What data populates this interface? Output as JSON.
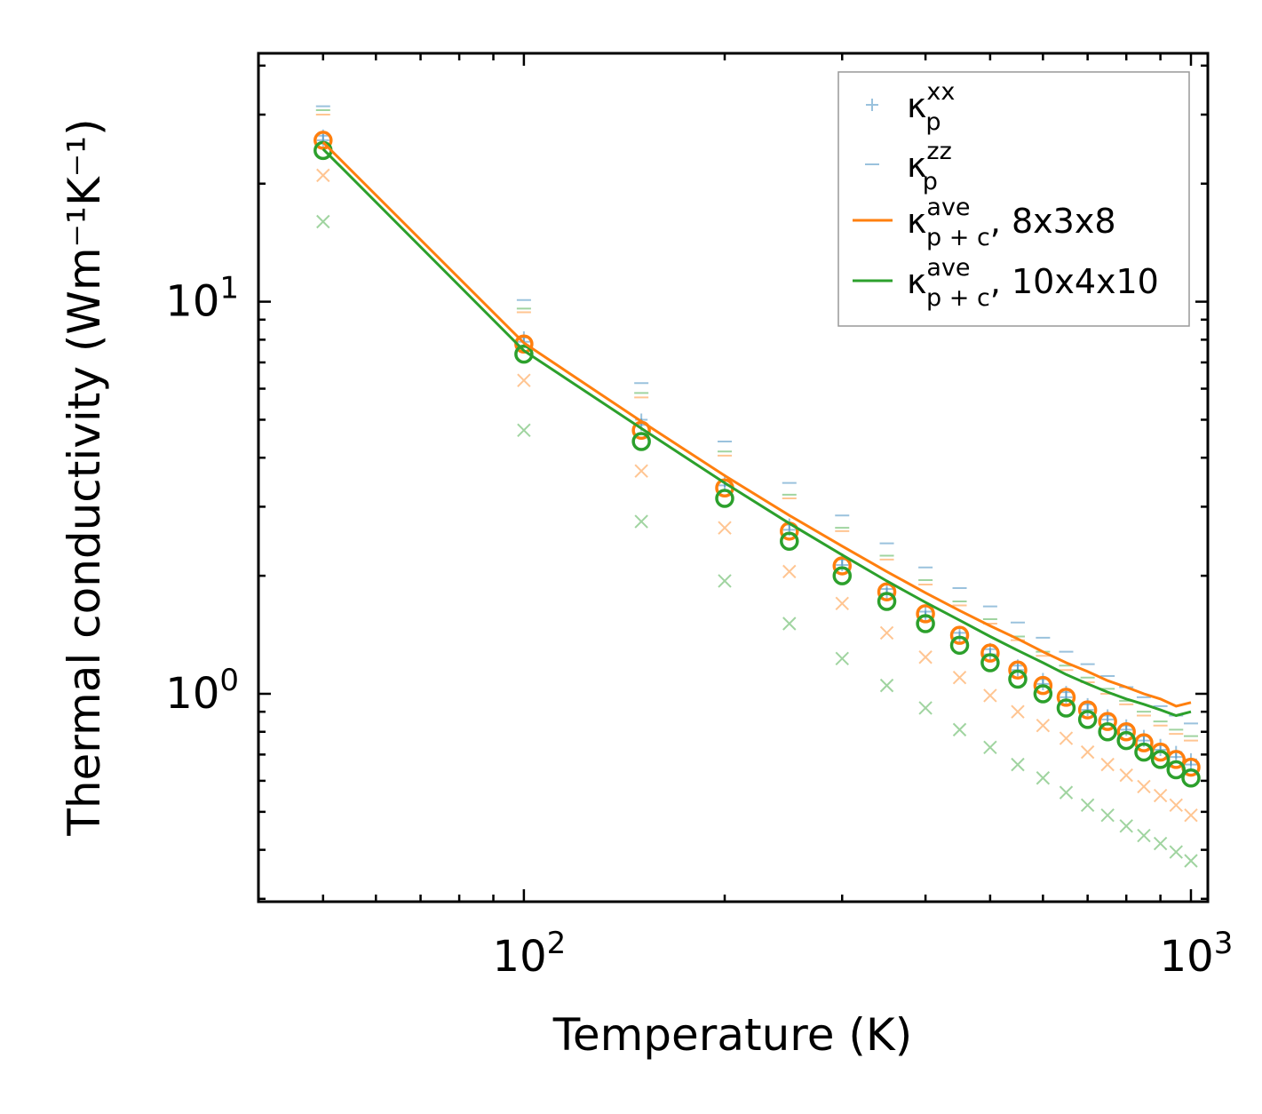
{
  "chart_data": {
    "type": "scatter",
    "xscale": "log",
    "yscale": "log",
    "xlabel": "Temperature (K)",
    "ylabel": "Thermal conductivity (Wm⁻¹K⁻¹)",
    "xlim": [
      40,
      1060
    ],
    "ylim": [
      0.295,
      43
    ],
    "x_ticks": [
      {
        "value": 100,
        "base": "10",
        "exp": "2"
      },
      {
        "value": 1000,
        "base": "10",
        "exp": "3"
      }
    ],
    "y_ticks": [
      {
        "value": 1,
        "base": "10",
        "exp": "0"
      },
      {
        "value": 10,
        "base": "10",
        "exp": "1"
      }
    ],
    "colors": {
      "blue": "#1f77b4",
      "orange": "#ff7f0e",
      "green": "#2ca02c"
    },
    "temperatures": [
      50,
      100,
      150,
      200,
      250,
      300,
      350,
      400,
      450,
      500,
      550,
      600,
      650,
      700,
      750,
      800,
      850,
      900,
      950,
      1000
    ],
    "series": [
      {
        "name": "kxx_8x3x8",
        "marker": "plus",
        "color": "#1f77b4",
        "alpha": 0.45,
        "values": [
          26.5,
          8.1,
          5.0,
          3.5,
          2.7,
          2.2,
          1.85,
          1.62,
          1.43,
          1.3,
          1.18,
          1.09,
          1.01,
          0.94,
          0.88,
          0.83,
          0.78,
          0.74,
          0.71,
          0.68
        ]
      },
      {
        "name": "kzz_8x3x8",
        "marker": "minus",
        "color": "#1f77b4",
        "alpha": 0.45,
        "values": [
          31.5,
          10.1,
          6.2,
          4.4,
          3.45,
          2.85,
          2.42,
          2.1,
          1.86,
          1.67,
          1.52,
          1.39,
          1.28,
          1.19,
          1.11,
          1.04,
          0.98,
          0.93,
          0.88,
          0.84
        ]
      },
      {
        "name": "kxx_10x4x10",
        "marker": "plus",
        "color": "#1f77b4",
        "alpha": 0.45,
        "values": [
          25.8,
          7.9,
          4.85,
          3.4,
          2.62,
          2.13,
          1.8,
          1.57,
          1.39,
          1.26,
          1.15,
          1.06,
          0.98,
          0.91,
          0.86,
          0.81,
          0.76,
          0.72,
          0.69,
          0.66
        ]
      },
      {
        "name": "kzz_8x3x8_orange",
        "marker": "minus",
        "color": "#ff7f0e",
        "alpha": 0.45,
        "values": [
          30.0,
          9.4,
          5.7,
          4.05,
          3.15,
          2.6,
          2.2,
          1.9,
          1.68,
          1.51,
          1.37,
          1.25,
          1.15,
          1.07,
          1.0,
          0.94,
          0.88,
          0.83,
          0.79,
          0.76
        ]
      },
      {
        "name": "kzz_10x4x10_green",
        "marker": "minus",
        "color": "#2ca02c",
        "alpha": 0.45,
        "values": [
          30.8,
          9.6,
          5.85,
          4.15,
          3.22,
          2.65,
          2.25,
          1.95,
          1.72,
          1.55,
          1.4,
          1.28,
          1.18,
          1.1,
          1.03,
          0.96,
          0.9,
          0.85,
          0.81,
          0.78
        ]
      },
      {
        "name": "coherent_8x3x8",
        "marker": "x",
        "color": "#ff7f0e",
        "alpha": 0.45,
        "values": [
          21.0,
          6.3,
          3.7,
          2.65,
          2.05,
          1.7,
          1.43,
          1.24,
          1.1,
          0.99,
          0.9,
          0.83,
          0.77,
          0.71,
          0.66,
          0.62,
          0.58,
          0.55,
          0.52,
          0.49
        ]
      },
      {
        "name": "coherent_10x4x10",
        "marker": "x",
        "color": "#2ca02c",
        "alpha": 0.45,
        "values": [
          16.0,
          4.7,
          2.75,
          1.94,
          1.51,
          1.23,
          1.05,
          0.92,
          0.81,
          0.73,
          0.66,
          0.61,
          0.56,
          0.52,
          0.49,
          0.46,
          0.435,
          0.415,
          0.395,
          0.375
        ]
      },
      {
        "name": "kp_ave_8x3x8",
        "marker": "circle",
        "color": "#ff7f0e",
        "alpha": 1,
        "values": [
          25.8,
          7.8,
          4.7,
          3.35,
          2.6,
          2.12,
          1.82,
          1.6,
          1.41,
          1.27,
          1.15,
          1.05,
          0.98,
          0.91,
          0.85,
          0.8,
          0.75,
          0.71,
          0.68,
          0.65
        ]
      },
      {
        "name": "kp_ave_10x4x10",
        "marker": "circle",
        "color": "#2ca02c",
        "alpha": 1,
        "values": [
          24.3,
          7.35,
          4.4,
          3.15,
          2.45,
          2.0,
          1.72,
          1.51,
          1.33,
          1.2,
          1.09,
          1.0,
          0.92,
          0.86,
          0.8,
          0.76,
          0.71,
          0.68,
          0.64,
          0.61
        ]
      },
      {
        "name": "kpc_ave_8x3x8",
        "marker": "line",
        "color": "#ff7f0e",
        "alpha": 1,
        "values": [
          25.5,
          7.85,
          4.95,
          3.6,
          2.85,
          2.38,
          2.05,
          1.81,
          1.63,
          1.49,
          1.38,
          1.28,
          1.2,
          1.14,
          1.08,
          1.04,
          1.0,
          0.97,
          0.93,
          0.95
        ]
      },
      {
        "name": "kpc_ave_10x4x10",
        "marker": "line",
        "color": "#2ca02c",
        "alpha": 1,
        "values": [
          24.5,
          7.5,
          4.75,
          3.45,
          2.72,
          2.26,
          1.94,
          1.71,
          1.54,
          1.4,
          1.29,
          1.2,
          1.12,
          1.06,
          1.01,
          0.97,
          0.94,
          0.91,
          0.88,
          0.9
        ]
      }
    ],
    "legend": {
      "placement": "top-right",
      "entries": [
        {
          "marker": "plus",
          "color": "#1f77b4",
          "symbol": "κ",
          "sub": "p",
          "sup": "xx",
          "suffix": ""
        },
        {
          "marker": "minus",
          "color": "#1f77b4",
          "symbol": "κ",
          "sub": "p",
          "sup": "zz",
          "suffix": ""
        },
        {
          "marker": "line",
          "color": "#ff7f0e",
          "symbol": "κ",
          "sub": "p + c",
          "sup": "ave",
          "suffix": ", 8x3x8"
        },
        {
          "marker": "line",
          "color": "#2ca02c",
          "symbol": "κ",
          "sub": "p + c",
          "sup": "ave",
          "suffix": ", 10x4x10"
        }
      ]
    }
  }
}
